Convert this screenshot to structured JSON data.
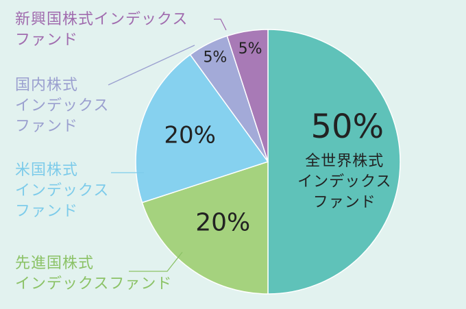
{
  "chart_data": {
    "type": "pie",
    "start_angle_deg": 0,
    "direction": "clockwise",
    "slices": [
      {
        "label": "全世界株式\nインデックス\nファンド",
        "value": 50,
        "value_text": "50%",
        "color": "#5fc2b9",
        "label_color": "#222222",
        "label_placement": "inside"
      },
      {
        "label": "先進国株式\nインデックスファンド",
        "value": 20,
        "value_text": "20%",
        "color": "#a5d27e",
        "label_color": "#8bc266",
        "label_placement": "outside"
      },
      {
        "label": "米国株式\nインデックス\nファンド",
        "value": 20,
        "value_text": "20%",
        "color": "#86d1ef",
        "label_color": "#7ccbea",
        "label_placement": "outside"
      },
      {
        "label": "国内株式\nインデックス\nファンド",
        "value": 5,
        "value_text": "5%",
        "color": "#a3aad8",
        "label_color": "#9a9fcf",
        "label_placement": "outside"
      },
      {
        "label": "新興国株式インデックス\nファンド",
        "value": 5,
        "value_text": "5%",
        "color": "#a87ab6",
        "label_color": "#a06bae",
        "label_placement": "outside"
      }
    ]
  }
}
